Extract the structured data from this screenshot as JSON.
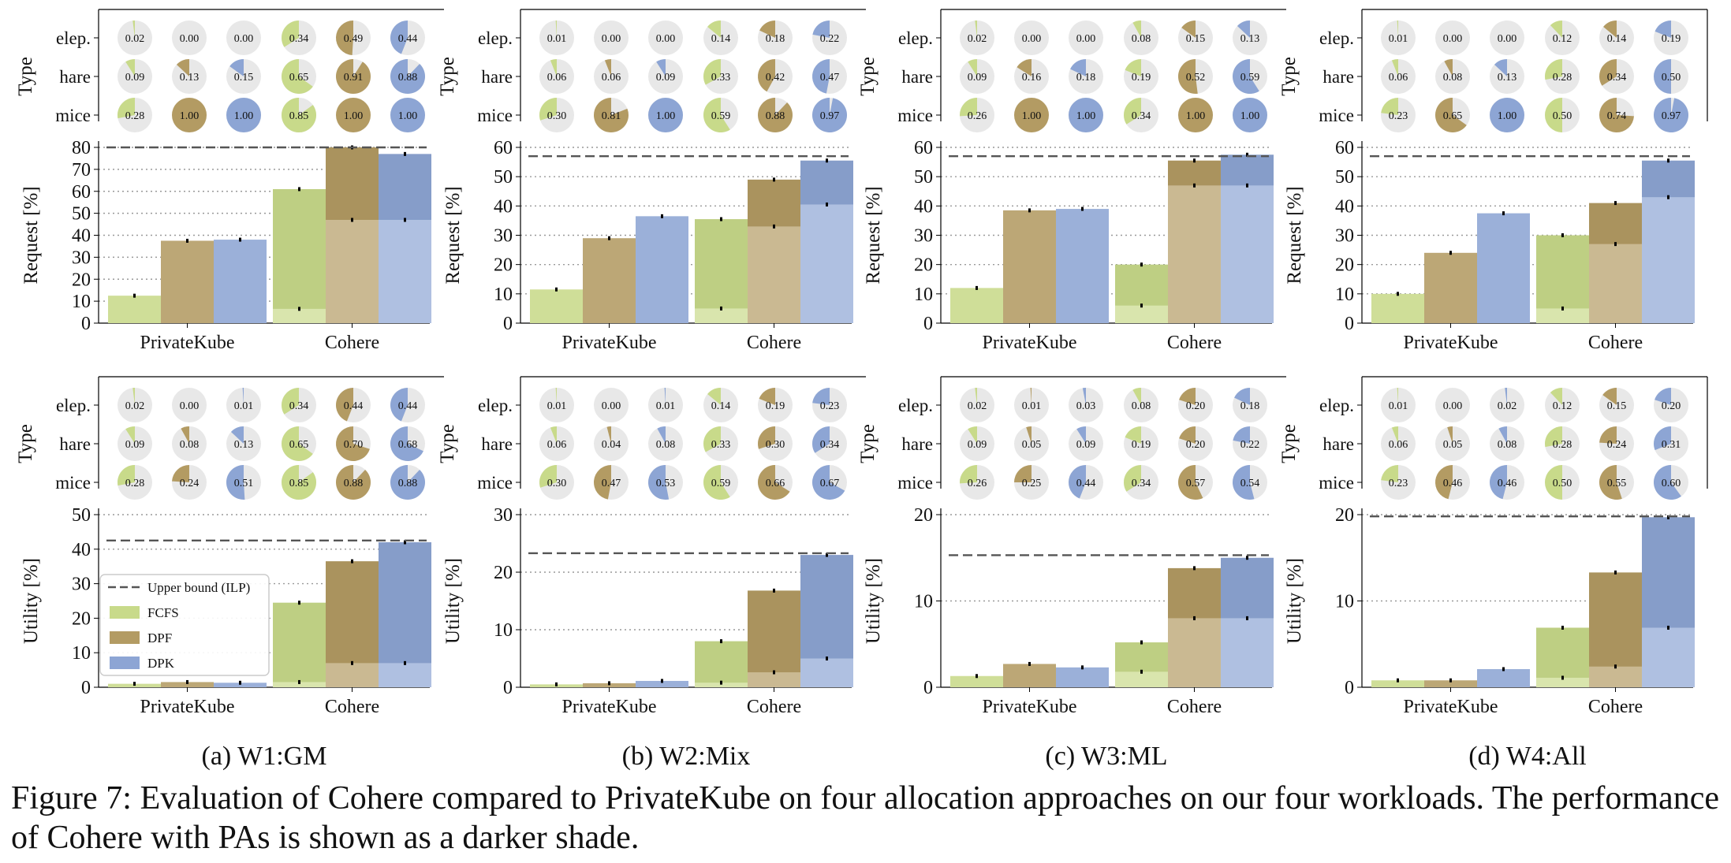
{
  "figure": {
    "caption": "Figure 7: Evaluation of Cohere compared to PrivateKube on four allocation approaches on our four workloads. The performance of Cohere with PAs is shown as a darker shade."
  },
  "chart_data": {
    "type": "bar",
    "systems": [
      "PrivateKube",
      "Cohere"
    ],
    "methods": [
      "FCFS",
      "DPF",
      "DPK"
    ],
    "task_types": [
      "elep.",
      "hare",
      "mice"
    ],
    "pie_row_label": "Type",
    "request_ylabel": "Request [%]",
    "utility_ylabel": "Utility [%]",
    "legend": {
      "placement": "upper-left",
      "entries": [
        "Upper bound (ILP)",
        "FCFS",
        "DPF",
        "DPK"
      ]
    },
    "colors": {
      "FCFS": "#c8da8a",
      "DPF": "#b39b63",
      "DPK": "#8da5d4",
      "pie_bg": "#e8e8e8",
      "bound": "#555555"
    },
    "workloads": [
      {
        "sublabel": "(a) W1:GM",
        "request": {
          "ylim": [
            0,
            80
          ],
          "ticks": [
            0,
            10,
            20,
            30,
            40,
            50,
            60,
            70,
            80
          ],
          "upper_bound": 80,
          "privatekube": [
            12.5,
            37.5,
            38.0
          ],
          "cohere_base": [
            6.5,
            47.0,
            47.0
          ],
          "cohere_pa": [
            61.0,
            80.0,
            77.0
          ],
          "pies": [
            [
              "0.02",
              "0.00",
              "0.00",
              "0.34",
              "0.49",
              "0.44"
            ],
            [
              "0.09",
              "0.13",
              "0.15",
              "0.65",
              "0.91",
              "0.88"
            ],
            [
              "0.28",
              "1.00",
              "1.00",
              "0.85",
              "1.00",
              "1.00"
            ]
          ]
        },
        "utility": {
          "ylim": [
            0,
            50
          ],
          "ticks": [
            0,
            10,
            20,
            30,
            40,
            50
          ],
          "upper_bound": 42.5,
          "privatekube": [
            1.0,
            1.5,
            1.3
          ],
          "cohere_base": [
            1.5,
            7.0,
            7.0
          ],
          "cohere_pa": [
            24.5,
            36.5,
            42.0
          ],
          "pies": [
            [
              "0.02",
              "0.00",
              "0.01",
              "0.34",
              "0.44",
              "0.44"
            ],
            [
              "0.09",
              "0.08",
              "0.13",
              "0.65",
              "0.70",
              "0.68"
            ],
            [
              "0.28",
              "0.24",
              "0.51",
              "0.85",
              "0.88",
              "0.88"
            ]
          ]
        }
      },
      {
        "sublabel": "(b) W2:Mix",
        "request": {
          "ylim": [
            0,
            60
          ],
          "ticks": [
            0,
            10,
            20,
            30,
            40,
            50,
            60
          ],
          "upper_bound": 57,
          "privatekube": [
            11.5,
            29.0,
            36.5
          ],
          "cohere_base": [
            5.0,
            33.0,
            40.5
          ],
          "cohere_pa": [
            35.5,
            49.0,
            55.5
          ],
          "pies": [
            [
              "0.01",
              "0.00",
              "0.00",
              "0.14",
              "0.18",
              "0.22"
            ],
            [
              "0.06",
              "0.06",
              "0.09",
              "0.33",
              "0.42",
              "0.47"
            ],
            [
              "0.30",
              "0.81",
              "1.00",
              "0.59",
              "0.88",
              "0.97"
            ]
          ]
        },
        "utility": {
          "ylim": [
            0,
            30
          ],
          "ticks": [
            0,
            10,
            20,
            30
          ],
          "upper_bound": 23.3,
          "privatekube": [
            0.5,
            0.7,
            1.1
          ],
          "cohere_base": [
            0.8,
            2.6,
            5.0
          ],
          "cohere_pa": [
            8.0,
            16.8,
            23.0
          ],
          "pies": [
            [
              "0.01",
              "0.00",
              "0.01",
              "0.14",
              "0.19",
              "0.23"
            ],
            [
              "0.06",
              "0.04",
              "0.08",
              "0.33",
              "0.30",
              "0.34"
            ],
            [
              "0.30",
              "0.47",
              "0.53",
              "0.59",
              "0.66",
              "0.67"
            ]
          ]
        }
      },
      {
        "sublabel": "(c) W3:ML",
        "request": {
          "ylim": [
            0,
            60
          ],
          "ticks": [
            0,
            10,
            20,
            30,
            40,
            50,
            60
          ],
          "upper_bound": 57,
          "privatekube": [
            12.0,
            38.5,
            39.0
          ],
          "cohere_base": [
            6.0,
            47.0,
            47.0
          ],
          "cohere_pa": [
            20.0,
            55.5,
            57.5
          ],
          "pies": [
            [
              "0.02",
              "0.00",
              "0.00",
              "0.08",
              "0.15",
              "0.13"
            ],
            [
              "0.09",
              "0.16",
              "0.18",
              "0.19",
              "0.52",
              "0.59"
            ],
            [
              "0.26",
              "1.00",
              "1.00",
              "0.34",
              "1.00",
              "1.00"
            ]
          ]
        },
        "utility": {
          "ylim": [
            0,
            20
          ],
          "ticks": [
            0,
            10,
            20
          ],
          "upper_bound": 15.3,
          "privatekube": [
            1.3,
            2.7,
            2.3
          ],
          "cohere_base": [
            1.8,
            8.0,
            8.0
          ],
          "cohere_pa": [
            5.2,
            13.8,
            15.0
          ],
          "pies": [
            [
              "0.02",
              "0.01",
              "0.03",
              "0.08",
              "0.20",
              "0.18"
            ],
            [
              "0.09",
              "0.05",
              "0.09",
              "0.19",
              "0.20",
              "0.22"
            ],
            [
              "0.26",
              "0.25",
              "0.44",
              "0.34",
              "0.57",
              "0.54"
            ]
          ]
        }
      },
      {
        "sublabel": "(d) W4:All",
        "request": {
          "ylim": [
            0,
            60
          ],
          "ticks": [
            0,
            10,
            20,
            30,
            40,
            50,
            60
          ],
          "upper_bound": 57,
          "privatekube": [
            10.0,
            24.0,
            37.5
          ],
          "cohere_base": [
            5.0,
            27.0,
            43.0
          ],
          "cohere_pa": [
            30.0,
            41.0,
            55.5
          ],
          "pies": [
            [
              "0.01",
              "0.00",
              "0.00",
              "0.12",
              "0.14",
              "0.19"
            ],
            [
              "0.06",
              "0.08",
              "0.13",
              "0.28",
              "0.34",
              "0.50"
            ],
            [
              "0.23",
              "0.65",
              "1.00",
              "0.50",
              "0.74",
              "0.97"
            ]
          ]
        },
        "utility": {
          "ylim": [
            0,
            20
          ],
          "ticks": [
            0,
            10,
            20
          ],
          "upper_bound": 19.8,
          "privatekube": [
            0.8,
            0.8,
            2.1
          ],
          "cohere_base": [
            1.1,
            2.4,
            6.9
          ],
          "cohere_pa": [
            6.9,
            13.3,
            19.7
          ],
          "pies": [
            [
              "0.01",
              "0.00",
              "0.02",
              "0.12",
              "0.15",
              "0.20"
            ],
            [
              "0.06",
              "0.05",
              "0.08",
              "0.28",
              "0.24",
              "0.31"
            ],
            [
              "0.23",
              "0.46",
              "0.46",
              "0.50",
              "0.55",
              "0.60"
            ]
          ]
        }
      }
    ]
  }
}
